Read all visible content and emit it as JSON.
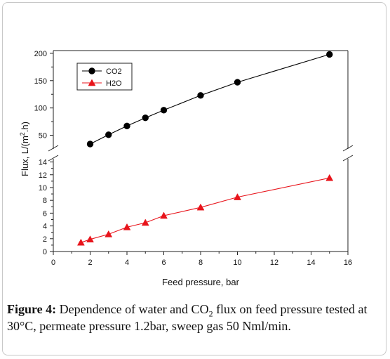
{
  "chart_data": {
    "type": "line",
    "xlabel": "Feed pressure, bar",
    "ylabel": {
      "prefix": "Flux, L/(m",
      "sup": "2",
      "suffix": ".h)"
    },
    "xlim": [
      0,
      16
    ],
    "x_ticks": [
      "0",
      "2",
      "4",
      "6",
      "8",
      "10",
      "12",
      "14",
      "16"
    ],
    "y_axis_break": true,
    "upper_panel": {
      "ylim": [
        25,
        205
      ],
      "y_ticks": [
        "50",
        "100",
        "150",
        "200"
      ]
    },
    "lower_panel": {
      "ylim": [
        0,
        14.5
      ],
      "y_ticks": [
        "0",
        "2",
        "4",
        "6",
        "8",
        "10",
        "12",
        "14"
      ]
    },
    "grid": false,
    "legend_position": "top-left",
    "series": [
      {
        "name": "CO2",
        "panel": "upper",
        "marker": "circle",
        "color": "#000000",
        "x": [
          2,
          3,
          4,
          5,
          6,
          8,
          10,
          15
        ],
        "y": [
          34,
          51,
          67,
          82,
          96,
          123,
          147,
          198
        ]
      },
      {
        "name": "H2O",
        "panel": "lower",
        "marker": "triangle",
        "color": "#e8141b",
        "x": [
          1.5,
          2,
          3,
          4,
          5,
          6,
          8,
          10,
          15
        ],
        "y": [
          1.4,
          1.9,
          2.7,
          3.8,
          4.5,
          5.6,
          6.9,
          8.5,
          11.5
        ]
      }
    ]
  },
  "caption": {
    "label": "Figure 4:",
    "text_before": " Dependence of water and CO",
    "sub": "2",
    "text_after": " flux on feed pressure tested at 30°C, permeate pressure 1.2bar, sweep gas 50 Nml/min."
  }
}
